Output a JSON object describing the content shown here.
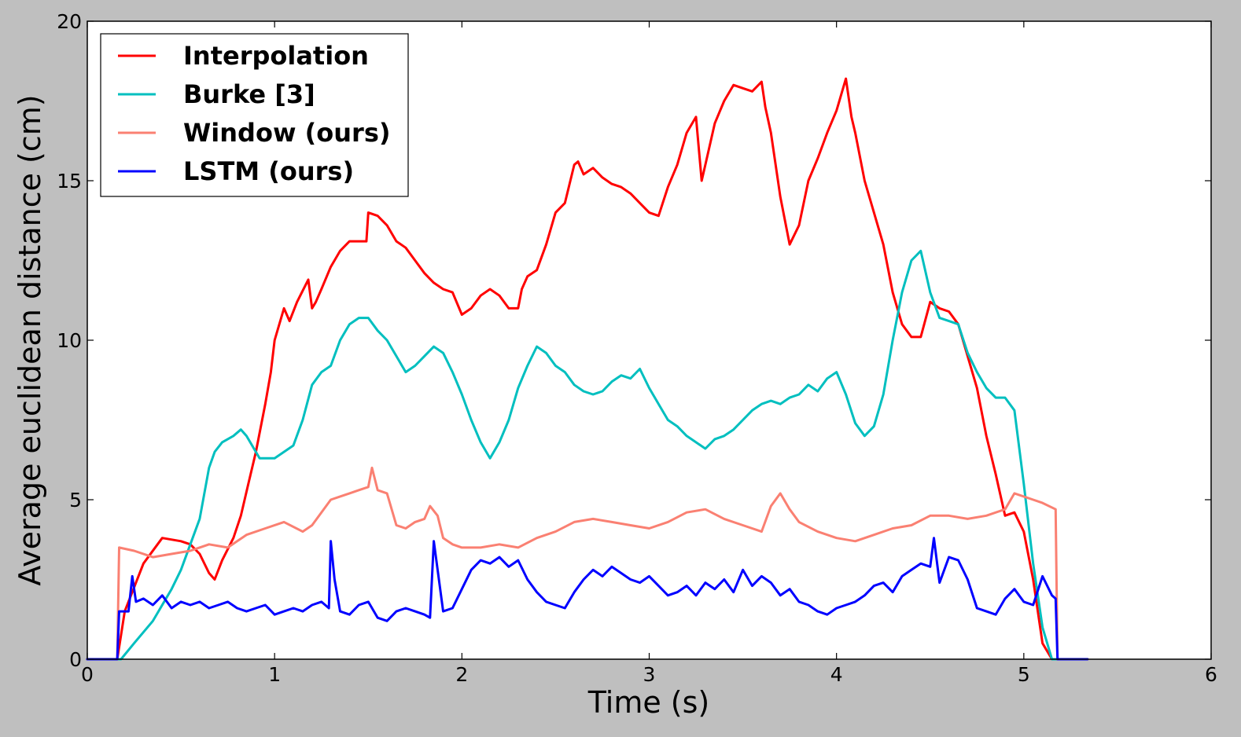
{
  "chart_data": {
    "type": "line",
    "title": "",
    "xlabel": "Time (s)",
    "ylabel": "Average euclidean distance (cm)",
    "xlim": [
      0,
      6
    ],
    "ylim": [
      0,
      20
    ],
    "xticks": [
      "0",
      "1",
      "2",
      "3",
      "4",
      "5",
      "6"
    ],
    "yticks": [
      "0",
      "5",
      "10",
      "15",
      "20"
    ],
    "legend_position": "top-left",
    "series": [
      {
        "name": "Interpolation",
        "color": "#ff0000",
        "x": [
          0,
          0.16,
          0.2,
          0.3,
          0.4,
          0.5,
          0.55,
          0.6,
          0.65,
          0.68,
          0.72,
          0.78,
          0.82,
          0.86,
          0.9,
          0.95,
          0.98,
          1.0,
          1.05,
          1.08,
          1.12,
          1.18,
          1.2,
          1.22,
          1.25,
          1.3,
          1.35,
          1.4,
          1.45,
          1.49,
          1.5,
          1.55,
          1.6,
          1.65,
          1.7,
          1.75,
          1.8,
          1.85,
          1.9,
          1.95,
          2.0,
          2.05,
          2.1,
          2.15,
          2.2,
          2.25,
          2.3,
          2.32,
          2.35,
          2.4,
          2.45,
          2.5,
          2.55,
          2.6,
          2.62,
          2.65,
          2.7,
          2.75,
          2.8,
          2.85,
          2.9,
          2.95,
          3.0,
          3.05,
          3.1,
          3.15,
          3.2,
          3.25,
          3.28,
          3.3,
          3.35,
          3.4,
          3.45,
          3.5,
          3.55,
          3.6,
          3.62,
          3.65,
          3.7,
          3.75,
          3.8,
          3.85,
          3.9,
          3.95,
          4.0,
          4.05,
          4.08,
          4.1,
          4.15,
          4.2,
          4.25,
          4.3,
          4.35,
          4.4,
          4.45,
          4.5,
          4.55,
          4.6,
          4.65,
          4.7,
          4.75,
          4.8,
          4.85,
          4.9,
          4.95,
          5.0,
          5.05,
          5.1,
          5.15,
          5.18,
          5.34
        ],
        "values": [
          0,
          0,
          1.5,
          3.0,
          3.8,
          3.7,
          3.6,
          3.3,
          2.7,
          2.5,
          3.1,
          3.8,
          4.5,
          5.5,
          6.5,
          8.0,
          9.0,
          10.0,
          11.0,
          10.6,
          11.2,
          11.9,
          11.0,
          11.2,
          11.6,
          12.3,
          12.8,
          13.1,
          13.1,
          13.1,
          14.0,
          13.9,
          13.6,
          13.1,
          12.9,
          12.5,
          12.1,
          11.8,
          11.6,
          11.5,
          10.8,
          11.0,
          11.4,
          11.6,
          11.4,
          11.0,
          11.0,
          11.6,
          12.0,
          12.2,
          13.0,
          14.0,
          14.3,
          15.5,
          15.6,
          15.2,
          15.4,
          15.1,
          14.9,
          14.8,
          14.6,
          14.3,
          14.0,
          13.9,
          14.8,
          15.5,
          16.5,
          17.0,
          15.0,
          15.5,
          16.8,
          17.5,
          18.0,
          17.9,
          17.8,
          18.1,
          17.3,
          16.5,
          14.5,
          13.0,
          13.6,
          15.0,
          15.7,
          16.5,
          17.2,
          18.2,
          17.0,
          16.5,
          15.0,
          14.0,
          13.0,
          11.5,
          10.5,
          10.1,
          10.1,
          11.2,
          11.0,
          10.9,
          10.5,
          9.5,
          8.5,
          7.0,
          5.8,
          4.5,
          4.6,
          4.0,
          2.5,
          0.5,
          0,
          0,
          0
        ]
      },
      {
        "name": "Burke [3]",
        "color": "#00bfbf",
        "x": [
          0,
          0.18,
          0.25,
          0.35,
          0.45,
          0.5,
          0.55,
          0.6,
          0.65,
          0.68,
          0.72,
          0.78,
          0.82,
          0.85,
          0.88,
          0.92,
          1.0,
          1.05,
          1.1,
          1.15,
          1.2,
          1.25,
          1.3,
          1.35,
          1.4,
          1.45,
          1.5,
          1.55,
          1.6,
          1.65,
          1.7,
          1.75,
          1.8,
          1.85,
          1.9,
          1.95,
          2.0,
          2.05,
          2.1,
          2.15,
          2.2,
          2.25,
          2.3,
          2.35,
          2.4,
          2.45,
          2.5,
          2.55,
          2.6,
          2.65,
          2.7,
          2.75,
          2.8,
          2.85,
          2.9,
          2.95,
          3.0,
          3.05,
          3.1,
          3.15,
          3.2,
          3.25,
          3.3,
          3.35,
          3.4,
          3.45,
          3.5,
          3.55,
          3.6,
          3.65,
          3.7,
          3.75,
          3.8,
          3.85,
          3.9,
          3.95,
          4.0,
          4.05,
          4.1,
          4.15,
          4.2,
          4.25,
          4.3,
          4.35,
          4.4,
          4.45,
          4.5,
          4.55,
          4.6,
          4.65,
          4.7,
          4.75,
          4.8,
          4.85,
          4.9,
          4.95,
          5.0,
          5.05,
          5.1,
          5.15,
          5.18,
          5.34
        ],
        "values": [
          0,
          0,
          0.5,
          1.2,
          2.2,
          2.8,
          3.6,
          4.4,
          6.0,
          6.5,
          6.8,
          7.0,
          7.2,
          7.0,
          6.7,
          6.3,
          6.3,
          6.5,
          6.7,
          7.5,
          8.6,
          9.0,
          9.2,
          10.0,
          10.5,
          10.7,
          10.7,
          10.3,
          10.0,
          9.5,
          9.0,
          9.2,
          9.5,
          9.8,
          9.6,
          9.0,
          8.3,
          7.5,
          6.8,
          6.3,
          6.8,
          7.5,
          8.5,
          9.2,
          9.8,
          9.6,
          9.2,
          9.0,
          8.6,
          8.4,
          8.3,
          8.4,
          8.7,
          8.9,
          8.8,
          9.1,
          8.5,
          8.0,
          7.5,
          7.3,
          7.0,
          6.8,
          6.6,
          6.9,
          7.0,
          7.2,
          7.5,
          7.8,
          8.0,
          8.1,
          8.0,
          8.2,
          8.3,
          8.6,
          8.4,
          8.8,
          9.0,
          8.3,
          7.4,
          7.0,
          7.3,
          8.3,
          10.0,
          11.5,
          12.5,
          12.8,
          11.5,
          10.7,
          10.6,
          10.5,
          9.6,
          9.0,
          8.5,
          8.2,
          8.2,
          7.8,
          5.5,
          3.0,
          1.0,
          0,
          0,
          0
        ]
      },
      {
        "name": "Window (ours)",
        "color": "#fa8072",
        "x": [
          0,
          0.16,
          0.17,
          0.25,
          0.35,
          0.45,
          0.55,
          0.65,
          0.75,
          0.85,
          0.95,
          1.05,
          1.15,
          1.2,
          1.25,
          1.3,
          1.35,
          1.4,
          1.45,
          1.5,
          1.52,
          1.55,
          1.6,
          1.65,
          1.7,
          1.75,
          1.8,
          1.83,
          1.87,
          1.9,
          1.95,
          2.0,
          2.1,
          2.2,
          2.3,
          2.4,
          2.5,
          2.6,
          2.7,
          2.8,
          2.9,
          3.0,
          3.1,
          3.2,
          3.3,
          3.4,
          3.5,
          3.6,
          3.65,
          3.7,
          3.75,
          3.8,
          3.9,
          4.0,
          4.1,
          4.2,
          4.3,
          4.4,
          4.5,
          4.6,
          4.7,
          4.8,
          4.9,
          4.95,
          5.0,
          5.05,
          5.1,
          5.17,
          5.18,
          5.34
        ],
        "values": [
          0,
          0,
          3.5,
          3.4,
          3.2,
          3.3,
          3.4,
          3.6,
          3.5,
          3.9,
          4.1,
          4.3,
          4.0,
          4.2,
          4.6,
          5.0,
          5.1,
          5.2,
          5.3,
          5.4,
          6.0,
          5.3,
          5.2,
          4.2,
          4.1,
          4.3,
          4.4,
          4.8,
          4.5,
          3.8,
          3.6,
          3.5,
          3.5,
          3.6,
          3.5,
          3.8,
          4.0,
          4.3,
          4.4,
          4.3,
          4.2,
          4.1,
          4.3,
          4.6,
          4.7,
          4.4,
          4.2,
          4.0,
          4.8,
          5.2,
          4.7,
          4.3,
          4.0,
          3.8,
          3.7,
          3.9,
          4.1,
          4.2,
          4.5,
          4.5,
          4.4,
          4.5,
          4.7,
          5.2,
          5.1,
          5.0,
          4.9,
          4.7,
          0,
          0
        ]
      },
      {
        "name": "LSTM (ours)",
        "color": "#0000ff",
        "x": [
          0,
          0.16,
          0.17,
          0.22,
          0.24,
          0.26,
          0.3,
          0.35,
          0.4,
          0.45,
          0.5,
          0.55,
          0.6,
          0.65,
          0.7,
          0.75,
          0.8,
          0.85,
          0.9,
          0.95,
          1.0,
          1.05,
          1.1,
          1.15,
          1.2,
          1.25,
          1.29,
          1.3,
          1.32,
          1.35,
          1.4,
          1.45,
          1.5,
          1.55,
          1.6,
          1.65,
          1.7,
          1.75,
          1.8,
          1.83,
          1.85,
          1.9,
          1.95,
          2.0,
          2.05,
          2.1,
          2.15,
          2.2,
          2.25,
          2.3,
          2.35,
          2.4,
          2.45,
          2.5,
          2.55,
          2.6,
          2.65,
          2.7,
          2.75,
          2.8,
          2.85,
          2.9,
          2.95,
          3.0,
          3.05,
          3.1,
          3.15,
          3.2,
          3.25,
          3.3,
          3.35,
          3.4,
          3.45,
          3.5,
          3.55,
          3.6,
          3.65,
          3.7,
          3.75,
          3.8,
          3.85,
          3.9,
          3.95,
          4.0,
          4.05,
          4.1,
          4.15,
          4.2,
          4.25,
          4.3,
          4.35,
          4.4,
          4.45,
          4.5,
          4.52,
          4.55,
          4.6,
          4.65,
          4.7,
          4.75,
          4.8,
          4.85,
          4.9,
          4.95,
          5.0,
          5.05,
          5.1,
          5.15,
          5.17,
          5.18,
          5.34
        ],
        "values": [
          0,
          0,
          1.5,
          1.5,
          2.6,
          1.8,
          1.9,
          1.7,
          2.0,
          1.6,
          1.8,
          1.7,
          1.8,
          1.6,
          1.7,
          1.8,
          1.6,
          1.5,
          1.6,
          1.7,
          1.4,
          1.5,
          1.6,
          1.5,
          1.7,
          1.8,
          1.6,
          3.7,
          2.5,
          1.5,
          1.4,
          1.7,
          1.8,
          1.3,
          1.2,
          1.5,
          1.6,
          1.5,
          1.4,
          1.3,
          3.7,
          1.5,
          1.6,
          2.2,
          2.8,
          3.1,
          3.0,
          3.2,
          2.9,
          3.1,
          2.5,
          2.1,
          1.8,
          1.7,
          1.6,
          2.1,
          2.5,
          2.8,
          2.6,
          2.9,
          2.7,
          2.5,
          2.4,
          2.6,
          2.3,
          2.0,
          2.1,
          2.3,
          2.0,
          2.4,
          2.2,
          2.5,
          2.1,
          2.8,
          2.3,
          2.6,
          2.4,
          2.0,
          2.2,
          1.8,
          1.7,
          1.5,
          1.4,
          1.6,
          1.7,
          1.8,
          2.0,
          2.3,
          2.4,
          2.1,
          2.6,
          2.8,
          3.0,
          2.9,
          3.8,
          2.4,
          3.2,
          3.1,
          2.5,
          1.6,
          1.5,
          1.4,
          1.9,
          2.2,
          1.8,
          1.7,
          2.6,
          2.0,
          1.9,
          0,
          0
        ]
      }
    ]
  }
}
